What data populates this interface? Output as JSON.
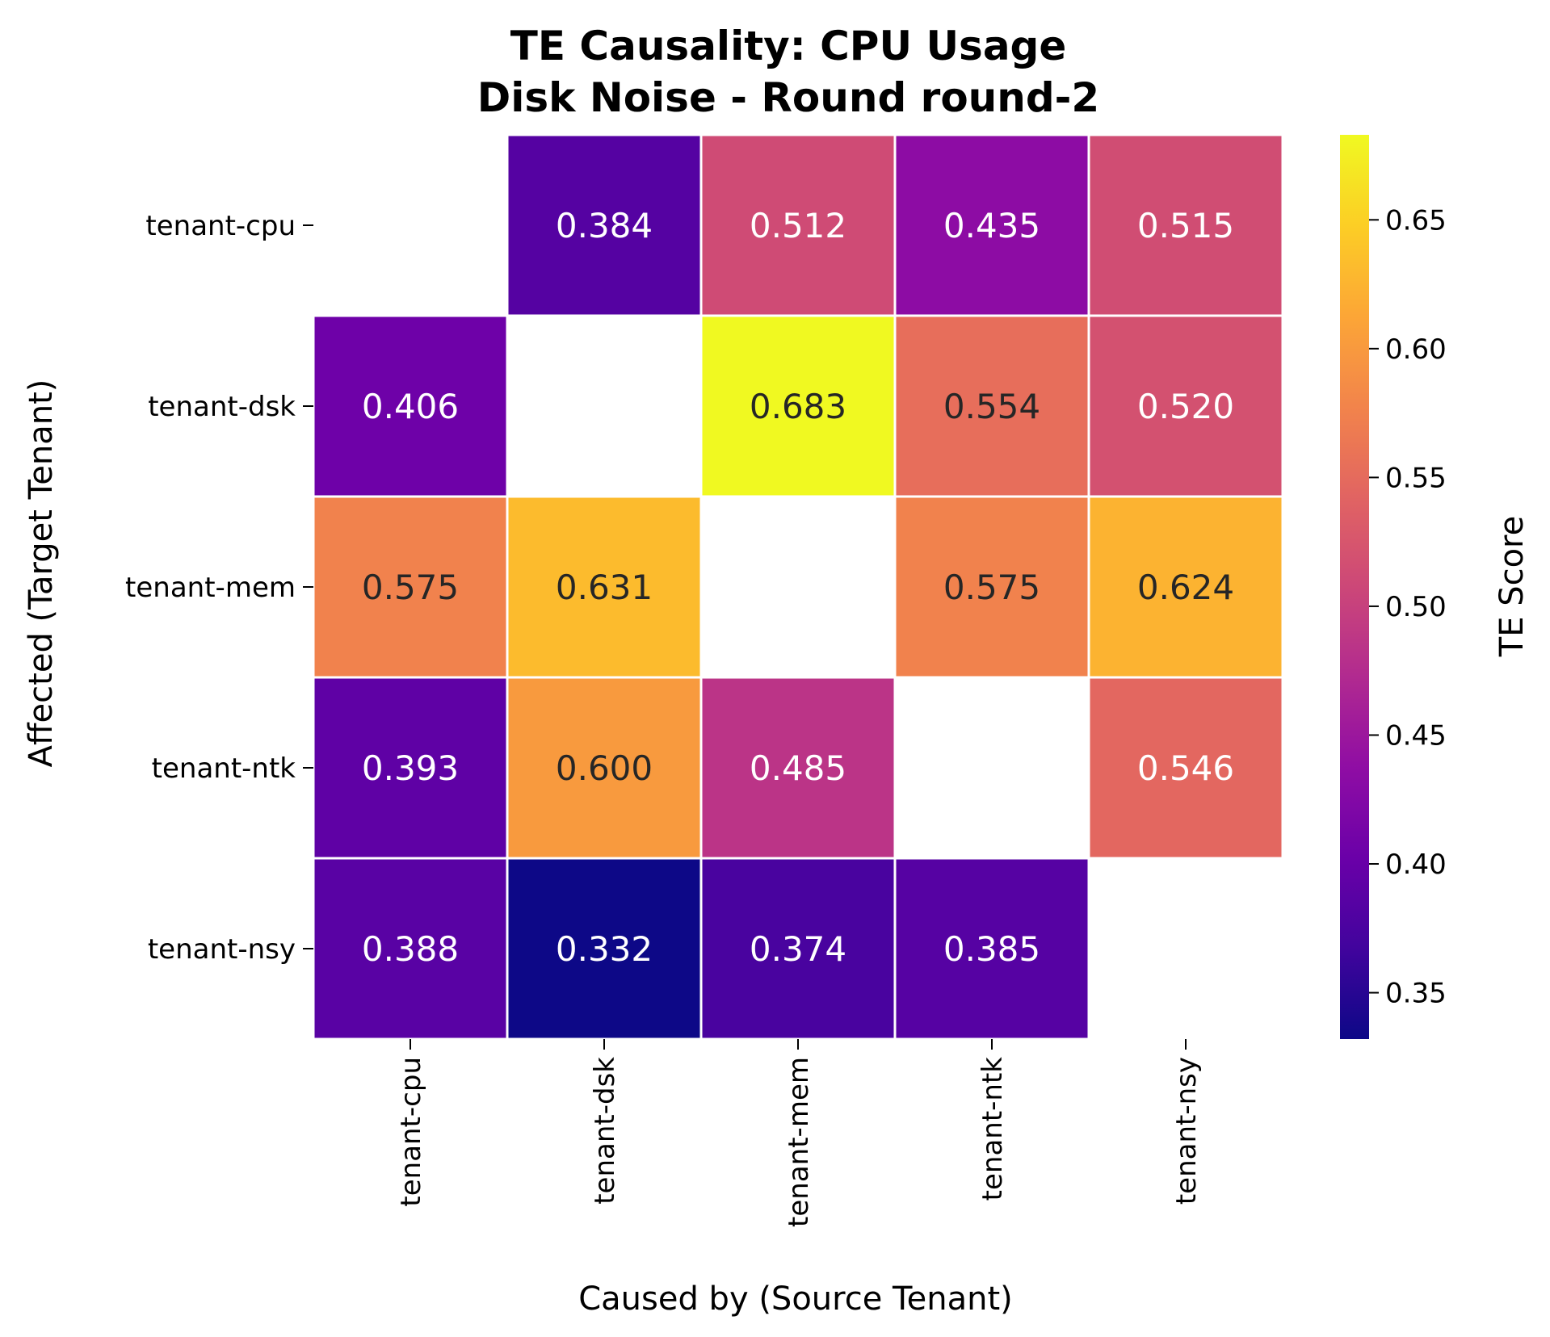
{
  "chart_data": {
    "type": "heatmap",
    "title_lines": [
      "TE Causality: CPU Usage",
      "Disk Noise - Round round-2"
    ],
    "xlabel": "Caused by (Source Tenant)",
    "ylabel": "Affected (Target Tenant)",
    "x_categories": [
      "tenant-cpu",
      "tenant-dsk",
      "tenant-mem",
      "tenant-ntk",
      "tenant-nsy"
    ],
    "y_categories": [
      "tenant-cpu",
      "tenant-dsk",
      "tenant-mem",
      "tenant-ntk",
      "tenant-nsy"
    ],
    "values": [
      [
        null,
        0.384,
        0.512,
        0.435,
        0.515
      ],
      [
        0.406,
        null,
        0.683,
        0.554,
        0.52
      ],
      [
        0.575,
        0.631,
        null,
        0.575,
        0.624
      ],
      [
        0.393,
        0.6,
        0.485,
        null,
        0.546
      ],
      [
        0.388,
        0.332,
        0.374,
        0.385,
        null
      ]
    ],
    "value_labels": [
      [
        "",
        "0.384",
        "0.512",
        "0.435",
        "0.515"
      ],
      [
        "0.406",
        "",
        "0.683",
        "0.554",
        "0.520"
      ],
      [
        "0.575",
        "0.631",
        "",
        "0.575",
        "0.624"
      ],
      [
        "0.393",
        "0.600",
        "0.485",
        "",
        "0.546"
      ],
      [
        "0.388",
        "0.332",
        "0.374",
        "0.385",
        ""
      ]
    ],
    "colormap": "plasma",
    "vmin": 0.332,
    "vmax": 0.683,
    "colorbar": {
      "label": "TE Score",
      "ticks": [
        0.35,
        0.4,
        0.45,
        0.5,
        0.55,
        0.6,
        0.65
      ],
      "tick_labels": [
        "0.35",
        "0.40",
        "0.45",
        "0.50",
        "0.55",
        "0.60",
        "0.65"
      ]
    },
    "cell_border_color": "#ffffff",
    "text_colors": {
      "light": "#ffffff",
      "dark": "#262626"
    }
  }
}
